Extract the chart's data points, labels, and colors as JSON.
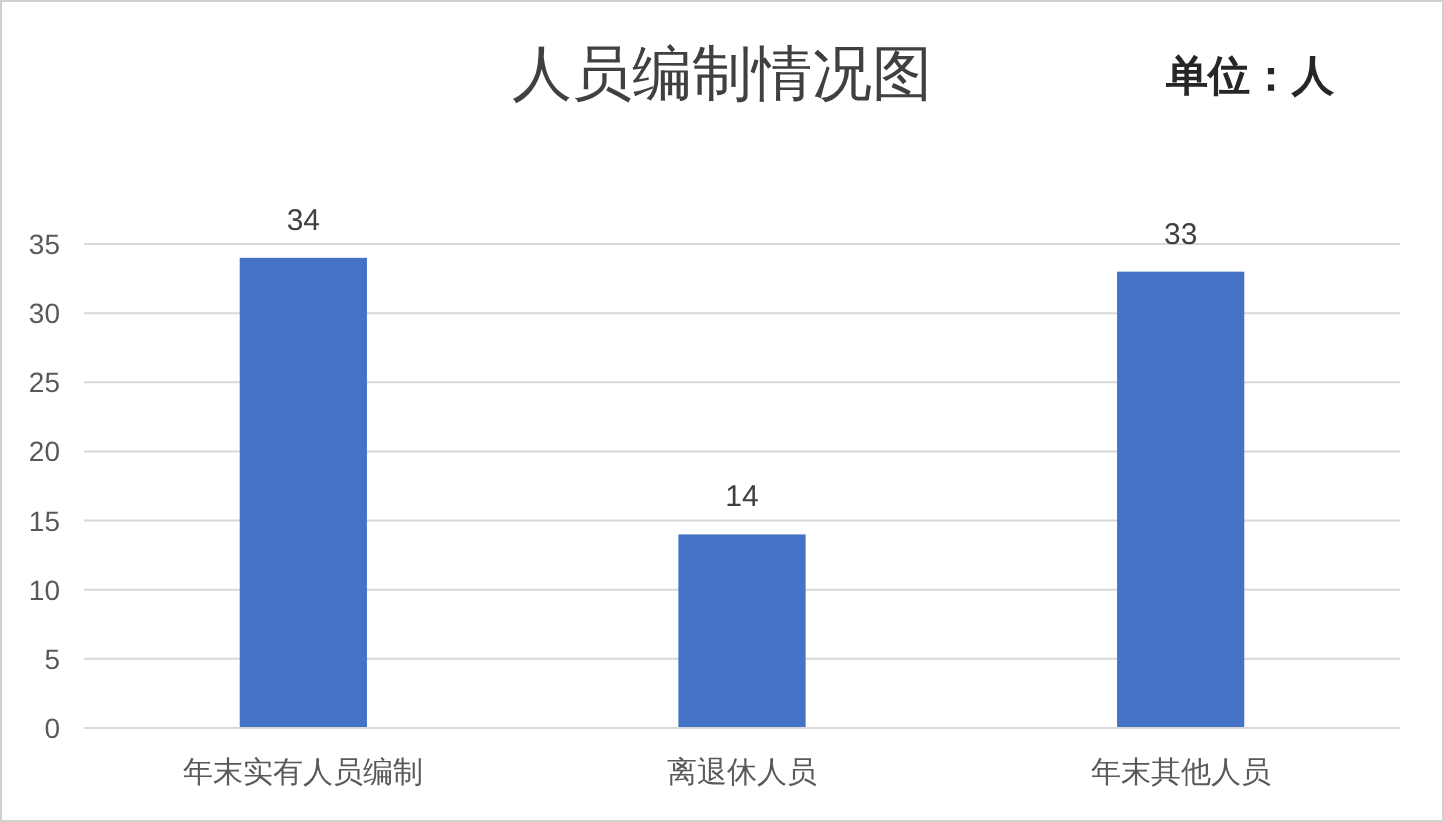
{
  "chart_data": {
    "type": "bar",
    "title": "人员编制情况图",
    "annotations": [
      "单位：人"
    ],
    "categories": [
      "年末实有人员编制",
      "离退休人员",
      "年末其他人员"
    ],
    "values": [
      34,
      14,
      33
    ],
    "color": "#4472c4",
    "data_labels": true,
    "ylim": [
      0,
      35
    ],
    "yticks": [
      0,
      5,
      10,
      15,
      20,
      25,
      30,
      35
    ],
    "grid": "y"
  }
}
